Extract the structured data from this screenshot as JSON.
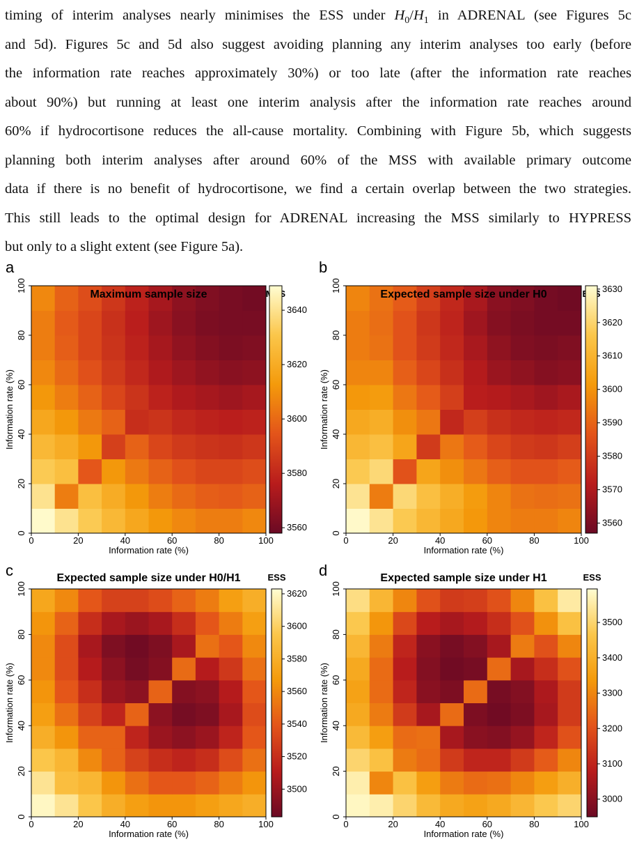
{
  "text": {
    "lines": [
      [
        "timing of interim analyses nearly minimises the ESS under ",
        "H",
        "0",
        "/",
        "H",
        "1",
        " in ADRENAL (see Figures 5c"
      ],
      "and 5d). Figures 5c and 5d also suggest avoiding planning any interim analyses too early (before",
      "the information rate reaches approximately 30%) or too late (after the information rate reaches",
      "about 90%) but running at least one interim analysis after the information rate reaches around",
      "60% if hydrocortisone reduces the all-cause mortality. Combining with Figure 5b, which suggests",
      "planning both interim analyses after around 60% of the MSS with available primary outcome",
      "data if there is no benefit of hydrocortisone, we find a certain overlap between the two strategies.",
      "This still leads to the optimal design for ADRENAL increasing the MSS similarly to HYPRESS",
      "but only to a slight extent (see Figure 5a)."
    ]
  },
  "colormap": [
    "#6b0a24",
    "#b81c1c",
    "#e3541a",
    "#f49a0b",
    "#fbc64a",
    "#fffdd2"
  ],
  "chart_data": [
    {
      "type": "heatmap",
      "panel_label": "a",
      "title": "Maximum sample size",
      "colorbar_label": "MSS",
      "x_label": "Information rate (%)",
      "y_label": "Information rate (%)",
      "x": [
        5,
        15,
        25,
        35,
        45,
        55,
        65,
        75,
        85,
        95
      ],
      "y": [
        5,
        15,
        25,
        35,
        45,
        55,
        65,
        75,
        85,
        95
      ],
      "xlim": [
        0,
        100
      ],
      "ylim": [
        0,
        100
      ],
      "xticks": [
        0,
        20,
        40,
        60,
        80,
        100
      ],
      "yticks": [
        0,
        20,
        40,
        60,
        80,
        100
      ],
      "zlim": [
        3558,
        3649
      ],
      "zticks": [
        3560,
        3580,
        3600,
        3620,
        3640
      ],
      "z": [
        [
          3648,
          3640,
          3632,
          3625,
          3618,
          3612,
          3608,
          3605,
          3605,
          3608
        ],
        [
          3640,
          3605,
          3628,
          3620,
          3612,
          3605,
          3600,
          3597,
          3596,
          3598
        ],
        [
          3632,
          3628,
          3595,
          3612,
          3604,
          3598,
          3593,
          3590,
          3590,
          3592
        ],
        [
          3625,
          3620,
          3612,
          3588,
          3598,
          3590,
          3586,
          3584,
          3583,
          3585
        ],
        [
          3618,
          3612,
          3604,
          3598,
          3582,
          3584,
          3580,
          3578,
          3577,
          3578
        ],
        [
          3612,
          3605,
          3598,
          3590,
          3584,
          3578,
          3574,
          3572,
          3570,
          3572
        ],
        [
          3608,
          3600,
          3593,
          3586,
          3580,
          3574,
          3570,
          3567,
          3565,
          3566
        ],
        [
          3605,
          3597,
          3590,
          3584,
          3578,
          3572,
          3567,
          3564,
          3562,
          3563
        ],
        [
          3605,
          3596,
          3590,
          3583,
          3577,
          3570,
          3565,
          3562,
          3561,
          3561
        ],
        [
          3608,
          3598,
          3592,
          3585,
          3578,
          3572,
          3566,
          3563,
          3561,
          3560
        ]
      ]
    },
    {
      "type": "heatmap",
      "panel_label": "b",
      "title": "Expected sample size under H0",
      "colorbar_label": "ESS",
      "x_label": "Information rate (%)",
      "y_label": "Information rate (%)",
      "x": [
        5,
        15,
        25,
        35,
        45,
        55,
        65,
        75,
        85,
        95
      ],
      "y": [
        5,
        15,
        25,
        35,
        45,
        55,
        65,
        75,
        85,
        95
      ],
      "xlim": [
        0,
        100
      ],
      "ylim": [
        0,
        100
      ],
      "xticks": [
        0,
        20,
        40,
        60,
        80,
        100
      ],
      "yticks": [
        0,
        20,
        40,
        60,
        80,
        100
      ],
      "zlim": [
        3557,
        3631
      ],
      "zticks": [
        3560,
        3570,
        3580,
        3590,
        3600,
        3610,
        3620,
        3630
      ],
      "z": [
        [
          3630,
          3624,
          3617,
          3611,
          3606,
          3601,
          3597,
          3595,
          3595,
          3597
        ],
        [
          3624,
          3595,
          3621,
          3614,
          3608,
          3602,
          3597,
          3593,
          3592,
          3593
        ],
        [
          3617,
          3621,
          3586,
          3605,
          3599,
          3594,
          3589,
          3586,
          3586,
          3588
        ],
        [
          3611,
          3614,
          3605,
          3580,
          3594,
          3588,
          3583,
          3580,
          3579,
          3581
        ],
        [
          3606,
          3608,
          3599,
          3594,
          3575,
          3581,
          3577,
          3575,
          3574,
          3575
        ],
        [
          3601,
          3602,
          3594,
          3588,
          3581,
          3572,
          3571,
          3569,
          3567,
          3569
        ],
        [
          3597,
          3597,
          3589,
          3583,
          3577,
          3571,
          3566,
          3564,
          3562,
          3563
        ],
        [
          3595,
          3593,
          3586,
          3580,
          3575,
          3569,
          3564,
          3561,
          3560,
          3561
        ],
        [
          3595,
          3592,
          3586,
          3579,
          3574,
          3567,
          3562,
          3560,
          3559,
          3559
        ],
        [
          3597,
          3593,
          3588,
          3581,
          3575,
          3569,
          3563,
          3561,
          3559,
          3558
        ]
      ]
    },
    {
      "type": "heatmap",
      "panel_label": "c",
      "title": "Expected sample size under H0/H1",
      "colorbar_label": "ESS",
      "x_label": "Information rate (%)",
      "y_label": "Information rate (%)",
      "x": [
        5,
        15,
        25,
        35,
        45,
        55,
        65,
        75,
        85,
        95
      ],
      "y": [
        5,
        15,
        25,
        35,
        45,
        55,
        65,
        75,
        85,
        95
      ],
      "xlim": [
        0,
        100
      ],
      "ylim": [
        0,
        100
      ],
      "xticks": [
        0,
        20,
        40,
        60,
        80,
        100
      ],
      "yticks": [
        0,
        20,
        40,
        60,
        80,
        100
      ],
      "zlim": [
        3483,
        3623
      ],
      "zticks": [
        3500,
        3520,
        3540,
        3560,
        3580,
        3600,
        3620
      ],
      "z": [
        [
          3620,
          3610,
          3595,
          3580,
          3570,
          3565,
          3565,
          3570,
          3575,
          3580
        ],
        [
          3610,
          3590,
          3585,
          3565,
          3550,
          3540,
          3540,
          3545,
          3555,
          3565
        ],
        [
          3595,
          3585,
          3560,
          3545,
          3530,
          3520,
          3515,
          3520,
          3535,
          3550
        ],
        [
          3580,
          3565,
          3545,
          3545,
          3515,
          3500,
          3495,
          3500,
          3515,
          3540
        ],
        [
          3570,
          3550,
          3530,
          3515,
          3545,
          3495,
          3487,
          3490,
          3505,
          3535
        ],
        [
          3565,
          3540,
          3520,
          3500,
          3495,
          3545,
          3492,
          3495,
          3510,
          3540
        ],
        [
          3560,
          3535,
          3510,
          3495,
          3487,
          3492,
          3548,
          3510,
          3525,
          3550
        ],
        [
          3560,
          3535,
          3505,
          3490,
          3485,
          3490,
          3505,
          3550,
          3540,
          3560
        ],
        [
          3565,
          3545,
          3520,
          3505,
          3500,
          3505,
          3520,
          3540,
          3555,
          3570
        ],
        [
          3575,
          3560,
          3540,
          3530,
          3530,
          3535,
          3545,
          3555,
          3570,
          3580
        ]
      ]
    },
    {
      "type": "heatmap",
      "panel_label": "d",
      "title": "Expected sample size under H1",
      "colorbar_label": "ESS",
      "x_label": "Information rate (%)",
      "y_label": "Information rate (%)",
      "x": [
        5,
        15,
        25,
        35,
        45,
        55,
        65,
        75,
        85,
        95
      ],
      "y": [
        5,
        15,
        25,
        35,
        45,
        55,
        65,
        75,
        85,
        95
      ],
      "xlim": [
        0,
        100
      ],
      "ylim": [
        0,
        100
      ],
      "xticks": [
        0,
        20,
        40,
        60,
        80,
        100
      ],
      "yticks": [
        0,
        20,
        40,
        60,
        80,
        100
      ],
      "zlim": [
        2950,
        3595
      ],
      "zticks": [
        3000,
        3100,
        3200,
        3300,
        3400,
        3500
      ],
      "z": [
        [
          3580,
          3560,
          3500,
          3430,
          3380,
          3360,
          3380,
          3420,
          3470,
          3500
        ],
        [
          3560,
          3300,
          3450,
          3350,
          3280,
          3250,
          3260,
          3300,
          3350,
          3400
        ],
        [
          3500,
          3450,
          3280,
          3250,
          3150,
          3100,
          3100,
          3150,
          3220,
          3300
        ],
        [
          3430,
          3350,
          3250,
          3260,
          3050,
          3000,
          2990,
          3020,
          3100,
          3200
        ],
        [
          3380,
          3280,
          3150,
          3050,
          3250,
          2980,
          2960,
          2980,
          3050,
          3150
        ],
        [
          3360,
          3250,
          3100,
          3000,
          2980,
          3250,
          2970,
          2990,
          3060,
          3150
        ],
        [
          3380,
          3250,
          3080,
          2990,
          2960,
          2970,
          3250,
          3050,
          3120,
          3200
        ],
        [
          3420,
          3280,
          3100,
          3000,
          2970,
          2990,
          3050,
          3280,
          3200,
          3300
        ],
        [
          3470,
          3330,
          3180,
          3080,
          3050,
          3070,
          3120,
          3200,
          3320,
          3450
        ],
        [
          3520,
          3420,
          3300,
          3200,
          3150,
          3160,
          3200,
          3300,
          3450,
          3550
        ]
      ]
    }
  ]
}
